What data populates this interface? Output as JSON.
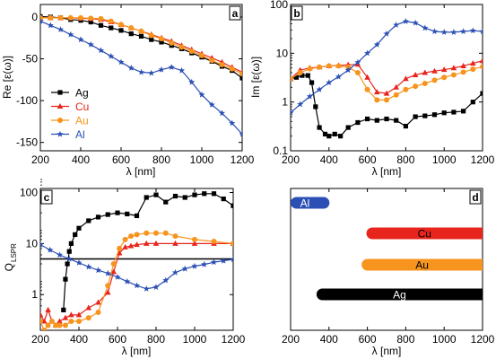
{
  "colors": {
    "Ag": "#000000",
    "Cu": "#e8251c",
    "Au": "#f7941d",
    "Al": "#2b4fb4"
  },
  "markers": {
    "Ag": "square",
    "Cu": "triangle",
    "Au": "circle",
    "Al": "star"
  },
  "chart_data": [
    {
      "panel": "a",
      "type": "line",
      "ylabel": "Re [ε(ω)]",
      "xlabel": "λ [nm]",
      "xlim": [
        200,
        1200
      ],
      "ylim": [
        -160,
        15
      ],
      "xticks": [
        200,
        400,
        600,
        800,
        1000,
        1200
      ],
      "yticks": [
        0,
        -50,
        -100,
        -150
      ],
      "legend_position": "bottom-left",
      "series": [
        {
          "name": "Ag",
          "x": [
            200,
            250,
            300,
            350,
            400,
            450,
            500,
            550,
            600,
            650,
            700,
            750,
            800,
            850,
            900,
            950,
            1000,
            1050,
            1100,
            1150,
            1200
          ],
          "y": [
            0.5,
            0,
            -1,
            -3,
            -4,
            -6,
            -10,
            -13,
            -16,
            -20,
            -23,
            -27,
            -30,
            -34,
            -38,
            -43,
            -48,
            -53,
            -59,
            -64,
            -73
          ]
        },
        {
          "name": "Cu",
          "x": [
            200,
            250,
            300,
            350,
            400,
            450,
            500,
            550,
            600,
            650,
            700,
            750,
            800,
            850,
            900,
            950,
            1000,
            1050,
            1100,
            1150,
            1200
          ],
          "y": [
            -1,
            -1,
            -1,
            -1,
            -1.5,
            -2,
            -3,
            -6,
            -9,
            -13,
            -17,
            -21,
            -25,
            -29,
            -34,
            -39,
            -44,
            -49,
            -54,
            -60,
            -66
          ]
        },
        {
          "name": "Au",
          "x": [
            200,
            250,
            300,
            350,
            400,
            450,
            500,
            550,
            600,
            650,
            700,
            750,
            800,
            850,
            900,
            950,
            1000,
            1050,
            1100,
            1150,
            1200
          ],
          "y": [
            -1,
            -1,
            -1,
            -1,
            -1,
            -1.5,
            -2,
            -5,
            -9,
            -13,
            -17,
            -22,
            -26,
            -31,
            -36,
            -41,
            -46,
            -52,
            -57,
            -62,
            -68
          ]
        },
        {
          "name": "Al",
          "x": [
            200,
            250,
            300,
            350,
            400,
            450,
            500,
            550,
            600,
            650,
            700,
            750,
            800,
            850,
            900,
            950,
            1000,
            1050,
            1100,
            1150,
            1200
          ],
          "y": [
            -5,
            -10,
            -15,
            -21,
            -27,
            -33,
            -40,
            -47,
            -54,
            -61,
            -66,
            -67,
            -63,
            -60,
            -64,
            -78,
            -93,
            -105,
            -115,
            -127,
            -140
          ]
        }
      ]
    },
    {
      "panel": "b",
      "type": "line",
      "yscale": "log",
      "ylabel": "Im [ε(ω)]",
      "xlabel": "λ [nm]",
      "xlim": [
        200,
        1200
      ],
      "ylim": [
        0.1,
        100
      ],
      "xticks": [
        200,
        400,
        600,
        800,
        1000,
        1200
      ],
      "yticks": [
        0.1,
        1,
        10,
        100
      ],
      "series": [
        {
          "name": "Ag",
          "x": [
            200,
            230,
            260,
            290,
            310,
            330,
            350,
            380,
            400,
            430,
            460,
            500,
            550,
            600,
            650,
            700,
            750,
            800,
            850,
            900,
            950,
            1000,
            1050,
            1100,
            1150,
            1200
          ],
          "y": [
            3,
            3.2,
            3.5,
            3.5,
            2.5,
            0.8,
            0.3,
            0.22,
            0.2,
            0.22,
            0.2,
            0.3,
            0.38,
            0.45,
            0.42,
            0.45,
            0.42,
            0.32,
            0.5,
            0.52,
            0.55,
            0.6,
            0.62,
            0.65,
            1.0,
            1.5
          ]
        },
        {
          "name": "Cu",
          "x": [
            200,
            250,
            300,
            350,
            400,
            450,
            500,
            550,
            600,
            650,
            700,
            750,
            800,
            850,
            900,
            950,
            1000,
            1050,
            1100,
            1150,
            1200
          ],
          "y": [
            3.0,
            4.5,
            5.0,
            5.2,
            5.5,
            5.6,
            5.8,
            5.9,
            3.2,
            1.6,
            1.5,
            2.0,
            3.0,
            3.6,
            4.0,
            4.3,
            4.6,
            5.0,
            5.5,
            6.2,
            7.0
          ]
        },
        {
          "name": "Au",
          "x": [
            200,
            250,
            300,
            350,
            400,
            450,
            500,
            550,
            600,
            650,
            700,
            750,
            800,
            850,
            900,
            950,
            1000,
            1050,
            1100,
            1150,
            1200
          ],
          "y": [
            3.0,
            4.0,
            4.8,
            5.2,
            5.5,
            5.5,
            5.2,
            4.0,
            1.8,
            1.1,
            1.1,
            1.4,
            1.8,
            2.1,
            2.4,
            2.8,
            3.2,
            3.6,
            4.1,
            4.7,
            5.3
          ]
        },
        {
          "name": "Al",
          "x": [
            200,
            250,
            300,
            350,
            400,
            450,
            500,
            550,
            600,
            650,
            700,
            750,
            800,
            850,
            900,
            950,
            1000,
            1050,
            1100,
            1150,
            1200
          ],
          "y": [
            0.6,
            0.9,
            1.3,
            1.8,
            2.5,
            3.3,
            4.5,
            6.5,
            10,
            15,
            25,
            38,
            45,
            42,
            33,
            28,
            27,
            27,
            28,
            29,
            28
          ]
        }
      ]
    },
    {
      "panel": "c",
      "type": "line",
      "yscale": "log",
      "ylabel": "Q",
      "ylabel_sub": "LSPR",
      "xlabel": "λ [nm]",
      "xlim": [
        200,
        1200
      ],
      "ylim": [
        0.2,
        120
      ],
      "xticks": [
        200,
        400,
        600,
        800,
        1000,
        1200
      ],
      "yticks": [
        1,
        10,
        100
      ],
      "reference_line": 5,
      "series": [
        {
          "name": "Ag",
          "x": [
            320,
            330,
            340,
            350,
            360,
            380,
            400,
            450,
            500,
            550,
            600,
            650,
            700,
            750,
            800,
            850,
            900,
            950,
            1000,
            1050,
            1100,
            1150,
            1200
          ],
          "y": [
            0.5,
            2.0,
            4.0,
            7.0,
            10,
            15,
            20,
            28,
            33,
            37,
            40,
            38,
            35,
            80,
            90,
            65,
            85,
            80,
            90,
            95,
            95,
            75,
            55
          ]
        },
        {
          "name": "Cu",
          "x": [
            200,
            220,
            240,
            260,
            280,
            300,
            330,
            360,
            400,
            450,
            500,
            550,
            580,
            610,
            640,
            670,
            700,
            750,
            800,
            900,
            1000,
            1100,
            1200
          ],
          "y": [
            0.4,
            0.3,
            0.5,
            0.3,
            0.25,
            0.3,
            0.35,
            0.4,
            0.4,
            0.55,
            0.7,
            1.1,
            2.8,
            6.5,
            8.5,
            9.0,
            9.5,
            10,
            10,
            10,
            10,
            10,
            10
          ]
        },
        {
          "name": "Au",
          "x": [
            200,
            220,
            240,
            260,
            280,
            300,
            330,
            360,
            400,
            450,
            500,
            550,
            580,
            610,
            640,
            670,
            700,
            750,
            800,
            850,
            900,
            1000,
            1100,
            1200
          ],
          "y": [
            0.3,
            0.2,
            0.25,
            0.3,
            0.25,
            0.25,
            0.25,
            0.3,
            0.3,
            0.35,
            0.45,
            1.5,
            4.0,
            8.0,
            12,
            14,
            15,
            16,
            16,
            16,
            14,
            12,
            11,
            10
          ]
        },
        {
          "name": "Al",
          "x": [
            200,
            250,
            300,
            350,
            400,
            450,
            500,
            550,
            600,
            650,
            700,
            750,
            800,
            850,
            900,
            950,
            1000,
            1050,
            1100,
            1150,
            1200
          ],
          "y": [
            9.5,
            7.5,
            6.0,
            5.0,
            4.2,
            3.5,
            3.0,
            2.6,
            2.2,
            1.8,
            1.5,
            1.3,
            1.4,
            1.9,
            2.7,
            3.2,
            3.6,
            3.9,
            4.3,
            4.6,
            4.9
          ]
        }
      ]
    },
    {
      "panel": "d",
      "type": "bar",
      "orientation": "horizontal",
      "xlabel": "λ [nm]",
      "xlim": [
        200,
        1200
      ],
      "xticks": [
        200,
        400,
        600,
        800,
        1000,
        1200
      ],
      "bars": [
        {
          "name": "Al",
          "start": 200,
          "end": 365
        },
        {
          "name": "Cu",
          "start": 595,
          "end": 1200
        },
        {
          "name": "Au",
          "start": 570,
          "end": 1200
        },
        {
          "name": "Ag",
          "start": 335,
          "end": 1200
        }
      ]
    }
  ]
}
